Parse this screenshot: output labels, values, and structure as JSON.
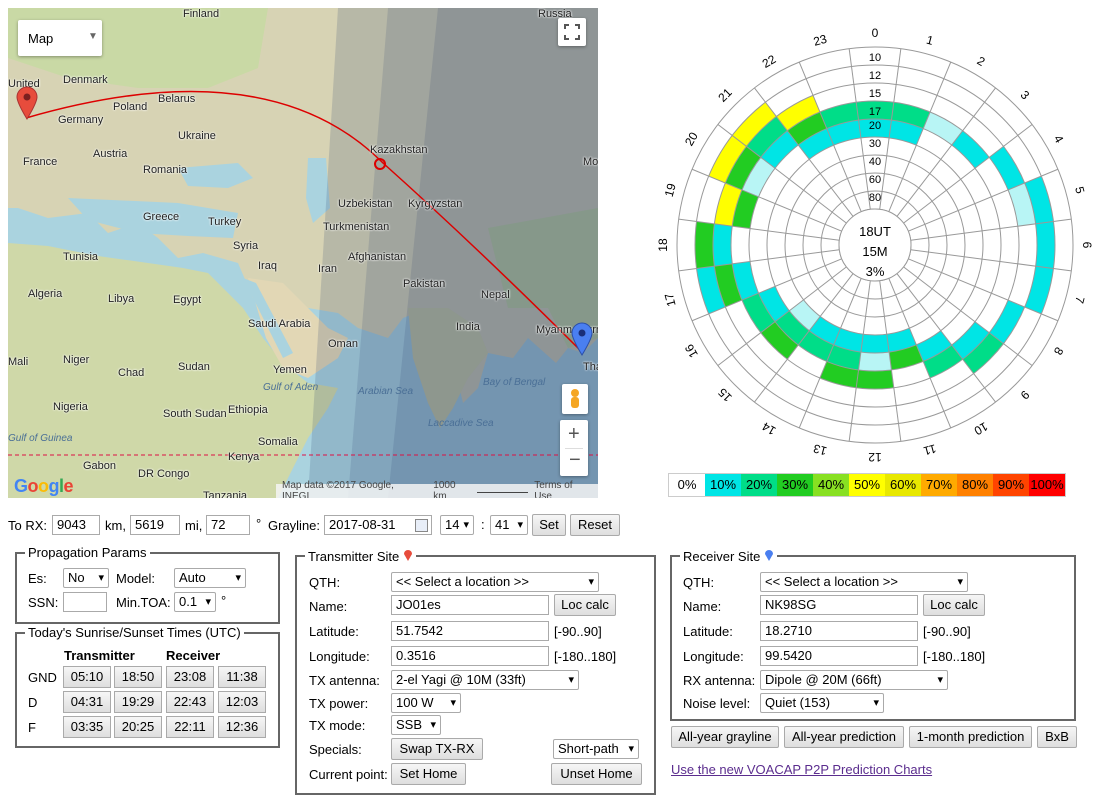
{
  "map": {
    "type_label": "Map",
    "attribution": "Map data ©2017 Google, INEGI",
    "scale_label": "1000 km",
    "terms": "Terms of Use",
    "logo": "Google",
    "countries": [
      "Finland",
      "Russia",
      "Denmark",
      "United",
      "Poland",
      "Belarus",
      "Germany",
      "Ukraine",
      "Austria",
      "France",
      "Romania",
      "Kazakhstan",
      "Uzbekistan",
      "Kyrgyzstan",
      "Greece",
      "Turkey",
      "Turkmenistan",
      "Mon",
      "Syria",
      "Tunisia",
      "Iraq",
      "Iran",
      "Afghanistan",
      "Algeria",
      "Libya",
      "Egypt",
      "Pakistan",
      "Nepal",
      "Saudi Arabia",
      "Oman",
      "India",
      "Myanm (Burm",
      "Mali",
      "Niger",
      "Chad",
      "Sudan",
      "Yemen",
      "Thaila",
      "Nigeria",
      "South Sudan",
      "Ethiopia",
      "Somalia",
      "Gabon",
      "Kenya",
      "DR Congo",
      "Tanzania"
    ],
    "seas": [
      "Gulf of Aden",
      "Arabian Sea",
      "Bay of Bengal",
      "Gulf of Guinea",
      "Laccadive Sea"
    ]
  },
  "polar": {
    "center_lines": [
      "18UT",
      "15M",
      "3%"
    ],
    "hours": [
      "0",
      "1",
      "2",
      "3",
      "4",
      "5",
      "6",
      "7",
      "8",
      "9",
      "10",
      "11",
      "12",
      "13",
      "14",
      "15",
      "16",
      "17",
      "18",
      "19",
      "20",
      "21",
      "22",
      "23"
    ],
    "rings": [
      "10",
      "12",
      "15",
      "17",
      "20",
      "30",
      "40",
      "60",
      "80"
    ],
    "scale": [
      "0%",
      "10%",
      "20%",
      "30%",
      "40%",
      "50%",
      "60%",
      "70%",
      "80%",
      "90%",
      "100%"
    ],
    "scale_colors": [
      "#ffffff",
      "#00e5e5",
      "#00dd88",
      "#22cc22",
      "#88e022",
      "#ffff00",
      "#e8e800",
      "#ffaa00",
      "#ff8000",
      "#ff4400",
      "#ff0000"
    ]
  },
  "distance": {
    "to_rx_label": "To RX:",
    "km_value": "9043",
    "km_label": "km,",
    "mi_value": "5619",
    "mi_label": "mi,",
    "deg_value": "72",
    "deg_label": "°",
    "grayline_label": "Grayline:",
    "date": "2017-08-31",
    "hour": "14",
    "colon": ":",
    "minute": "41",
    "set": "Set",
    "reset": "Reset"
  },
  "propagation": {
    "title": "Propagation Params",
    "es_label": "Es:",
    "es_value": "No",
    "model_label": "Model:",
    "model_value": "Auto",
    "ssn_label": "SSN:",
    "ssn_value": "",
    "mintoa_label": "Min.TOA:",
    "mintoa_value": "0.1",
    "deg": "°"
  },
  "sunrise": {
    "title": "Today's Sunrise/Sunset Times (UTC)",
    "transmitter": "Transmitter",
    "receiver": "Receiver",
    "rows": [
      {
        "label": "GND",
        "v": [
          "05:10",
          "18:50",
          "23:08",
          "11:38"
        ]
      },
      {
        "label": "D",
        "v": [
          "04:31",
          "19:29",
          "22:43",
          "12:03"
        ]
      },
      {
        "label": "F",
        "v": [
          "03:35",
          "20:25",
          "22:11",
          "12:36"
        ]
      }
    ]
  },
  "tx": {
    "title": "Transmitter Site",
    "qth_label": "QTH:",
    "qth_value": "<< Select a location >>",
    "name_label": "Name:",
    "name_value": "JO01es",
    "loc_calc": "Loc calc",
    "lat_label": "Latitude:",
    "lat_value": "51.7542",
    "lat_range": "[-90..90]",
    "lon_label": "Longitude:",
    "lon_value": "0.3516",
    "lon_range": "[-180..180]",
    "ant_label": "TX antenna:",
    "ant_value": "2-el Yagi @ 10M (33ft)",
    "power_label": "TX power:",
    "power_value": "100 W",
    "mode_label": "TX mode:",
    "mode_value": "SSB",
    "specials_label": "Specials:",
    "swap": "Swap TX-RX",
    "path_value": "Short-path",
    "current_label": "Current point:",
    "set_home": "Set Home",
    "unset_home": "Unset Home"
  },
  "rx": {
    "title": "Receiver Site",
    "qth_label": "QTH:",
    "qth_value": "<< Select a location >>",
    "name_label": "Name:",
    "name_value": "NK98SG",
    "loc_calc": "Loc calc",
    "lat_label": "Latitude:",
    "lat_value": "18.2710",
    "lat_range": "[-90..90]",
    "lon_label": "Longitude:",
    "lon_value": "99.5420",
    "lon_range": "[-180..180]",
    "ant_label": "RX antenna:",
    "ant_value": "Dipole @ 20M (66ft)",
    "noise_label": "Noise level:",
    "noise_value": "Quiet (153)"
  },
  "actions": {
    "grayline": "All-year grayline",
    "prediction": "All-year prediction",
    "month": "1-month prediction",
    "bxb": "BxB",
    "link": "Use the new VOACAP P2P Prediction Charts"
  }
}
